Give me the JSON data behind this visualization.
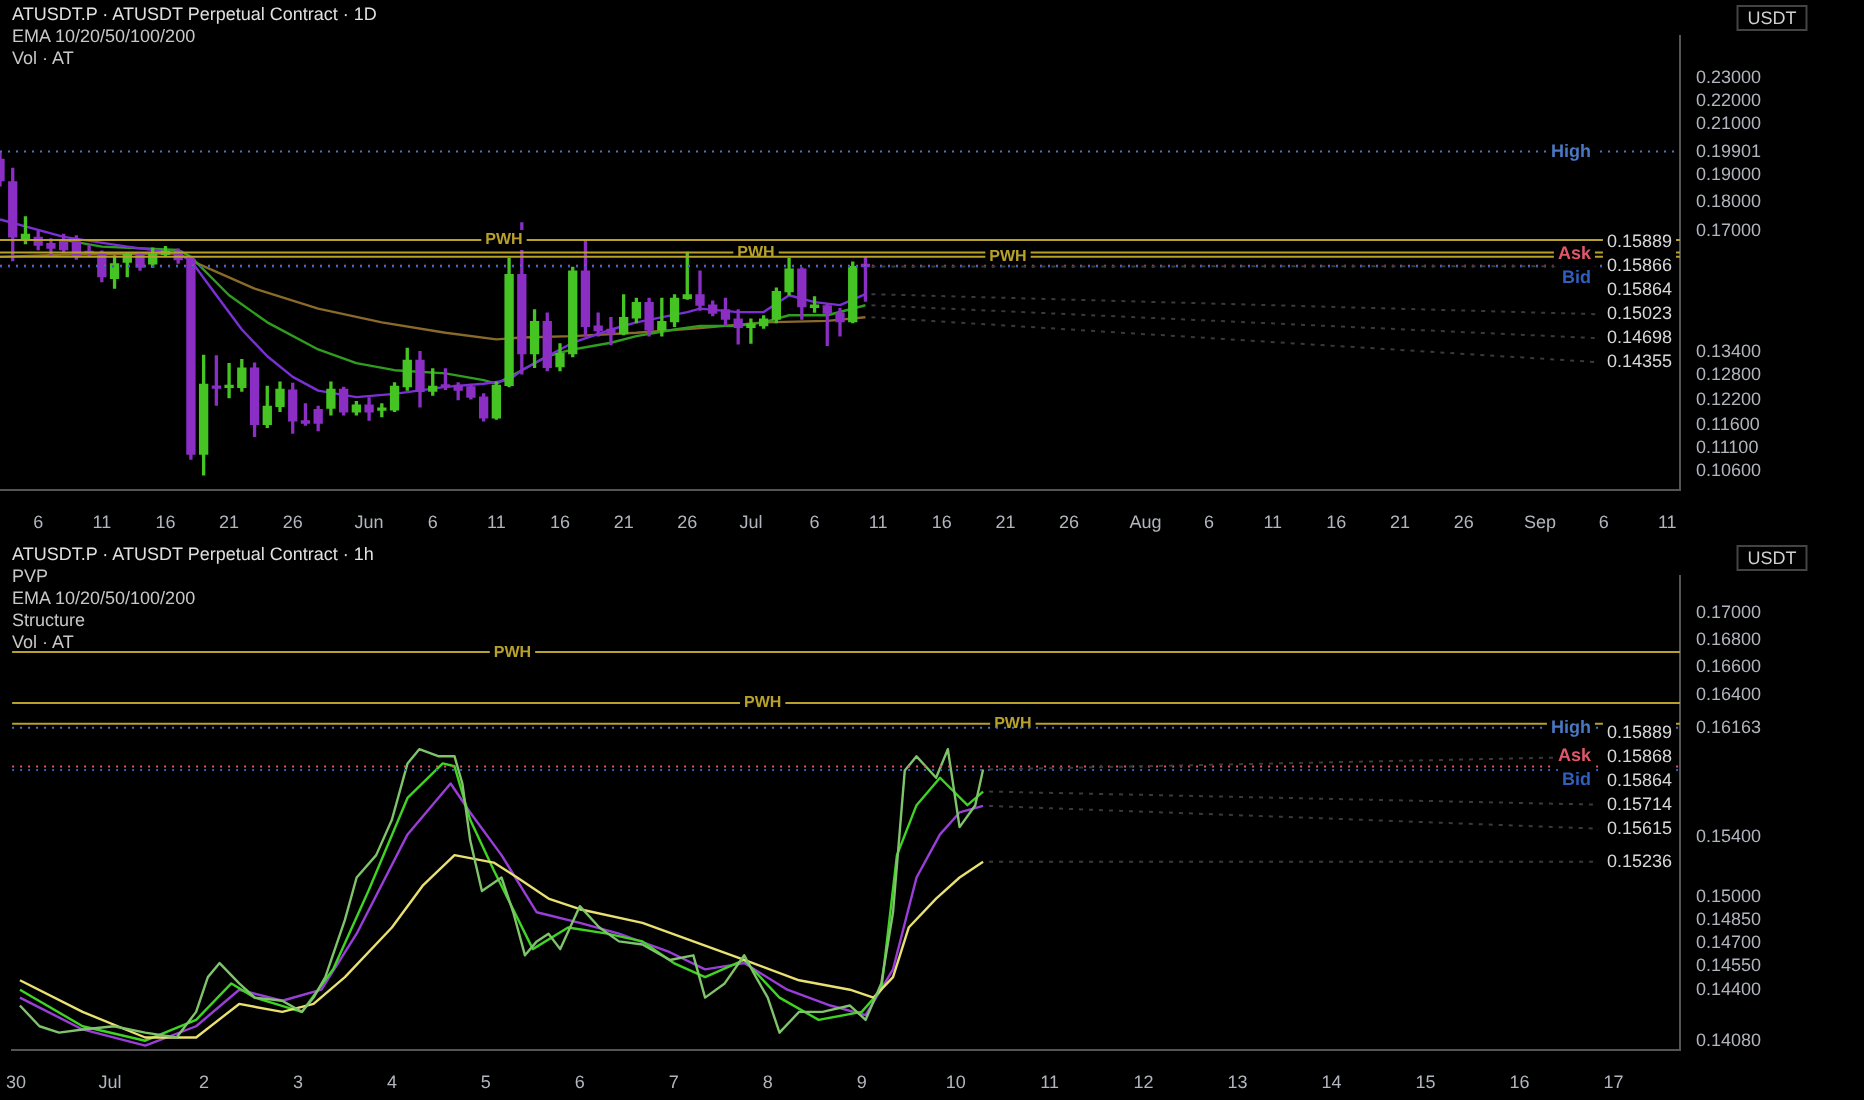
{
  "chart_data": [
    {
      "type": "candlestick",
      "title": "ATUSDT.P · ATUSDT Perpetual Contract · 1D",
      "annotations": [
        "EMA 10/20/50/100/200",
        "Vol · AT",
        {
          "text": "0.15889",
          "y": 0.15889
        },
        {
          "text": "0.15866",
          "x": "--07-10",
          "y": 0.15866
        },
        {
          "text": "0.15864",
          "y": 0.15864
        },
        {
          "text": "0.15023",
          "x": "--07-10",
          "y": 0.15023
        },
        {
          "text": "0.14698",
          "x": "--07-10",
          "y": 0.14698
        },
        {
          "text": "0.14355",
          "x": "--07-10",
          "y": 0.14355
        }
      ],
      "ylabel": "USDT",
      "log": true,
      "legend": false,
      "grid": false,
      "x": [
        "--05-03",
        "--05-04",
        "--05-05",
        "--05-06",
        "--05-07",
        "--05-08",
        "--05-09",
        "--05-10",
        "--05-11",
        "--05-12",
        "--05-13",
        "--05-14",
        "--05-15",
        "--05-16",
        "--05-17",
        "--05-18",
        "--05-19",
        "--05-20",
        "--05-21",
        "--05-22",
        "--05-23",
        "--05-24",
        "--05-25",
        "--05-26",
        "--05-27",
        "--05-28",
        "--05-29",
        "--05-30",
        "--05-31",
        "--06-01",
        "--06-02",
        "--06-03",
        "--06-04",
        "--06-05",
        "--06-06",
        "--06-07",
        "--06-08",
        "--06-09",
        "--06-10",
        "--06-11",
        "--06-12",
        "--06-13",
        "--06-14",
        "--06-15",
        "--06-16",
        "--06-17",
        "--06-18",
        "--06-19",
        "--06-20",
        "--06-21",
        "--06-22",
        "--06-23",
        "--06-24",
        "--06-25",
        "--06-26",
        "--06-27",
        "--06-28",
        "--06-29",
        "--06-30",
        "--07-01",
        "--07-02",
        "--07-03",
        "--07-04",
        "--07-05",
        "--07-06",
        "--07-07",
        "--07-08",
        "--07-09",
        "--07-10"
      ],
      "ohlc": [
        [
          0.196,
          0.199,
          0.186,
          0.188
        ],
        [
          0.1875,
          0.1925,
          0.1605,
          0.1682
        ],
        [
          0.1675,
          0.175,
          0.166,
          0.169
        ],
        [
          0.168,
          0.17,
          0.164,
          0.1655
        ],
        [
          0.166,
          0.1675,
          0.162,
          0.1645
        ],
        [
          0.167,
          0.169,
          0.163,
          0.164
        ],
        [
          0.1665,
          0.1685,
          0.161,
          0.162
        ],
        [
          0.163,
          0.1655,
          0.1618,
          0.1628
        ],
        [
          0.163,
          0.1635,
          0.154,
          0.1555
        ],
        [
          0.155,
          0.162,
          0.152,
          0.1595
        ],
        [
          0.16,
          0.163,
          0.1555,
          0.1625
        ],
        [
          0.1625,
          0.163,
          0.1575,
          0.1585
        ],
        [
          0.1595,
          0.1645,
          0.1585,
          0.1625
        ],
        [
          0.1625,
          0.165,
          0.162,
          0.1635
        ],
        [
          0.1635,
          0.1642,
          0.1597,
          0.1608
        ],
        [
          0.161,
          0.1617,
          0.1085,
          0.1096
        ],
        [
          0.1096,
          0.1331,
          0.1052,
          0.1257
        ],
        [
          0.125,
          0.133,
          0.1207,
          0.1248
        ],
        [
          0.125,
          0.131,
          0.1225,
          0.1252
        ],
        [
          0.125,
          0.132,
          0.1241,
          0.1298
        ],
        [
          0.1298,
          0.1311,
          0.1135,
          0.1162
        ],
        [
          0.1162,
          0.1252,
          0.1155,
          0.1204
        ],
        [
          0.1204,
          0.1263,
          0.1192,
          0.1245
        ],
        [
          0.1243,
          0.126,
          0.1142,
          0.117
        ],
        [
          0.1168,
          0.121,
          0.116,
          0.1165
        ],
        [
          0.1196,
          0.1204,
          0.1148,
          0.1165
        ],
        [
          0.12,
          0.1263,
          0.1184,
          0.1245
        ],
        [
          0.1245,
          0.125,
          0.1184,
          0.1191
        ],
        [
          0.1191,
          0.1215,
          0.1184,
          0.1207
        ],
        [
          0.1207,
          0.1224,
          0.1172,
          0.1191
        ],
        [
          0.1195,
          0.121,
          0.118,
          0.1196
        ],
        [
          0.1196,
          0.1261,
          0.1192,
          0.1252
        ],
        [
          0.1252,
          0.135,
          0.1243,
          0.1318
        ],
        [
          0.1318,
          0.1341,
          0.1203,
          0.124
        ],
        [
          0.1241,
          0.1296,
          0.1231,
          0.1252
        ],
        [
          0.1253,
          0.1296,
          0.1245,
          0.1251
        ],
        [
          0.1255,
          0.1261,
          0.122,
          0.1243
        ],
        [
          0.1251,
          0.1257,
          0.1222,
          0.1226
        ],
        [
          0.1226,
          0.1234,
          0.117,
          0.1177
        ],
        [
          0.1177,
          0.1263,
          0.1174,
          0.1255
        ],
        [
          0.1255,
          0.1612,
          0.1252,
          0.1561
        ],
        [
          0.1561,
          0.1729,
          0.1284,
          0.1336
        ],
        [
          0.1336,
          0.1456,
          0.13,
          0.1423
        ],
        [
          0.1423,
          0.1447,
          0.1292,
          0.13
        ],
        [
          0.1302,
          0.1362,
          0.1292,
          0.1336
        ],
        [
          0.1336,
          0.1584,
          0.1328,
          0.1572
        ],
        [
          0.1572,
          0.1672,
          0.1384,
          0.141
        ],
        [
          0.141,
          0.1447,
          0.1384,
          0.1398
        ],
        [
          0.1401,
          0.1434,
          0.136,
          0.139
        ],
        [
          0.139,
          0.15,
          0.1387,
          0.1434
        ],
        [
          0.1434,
          0.149,
          0.142,
          0.1477
        ],
        [
          0.1477,
          0.149,
          0.1384,
          0.14
        ],
        [
          0.14,
          0.149,
          0.1384,
          0.1423
        ],
        [
          0.1423,
          0.15,
          0.141,
          0.149
        ],
        [
          0.149,
          0.1631,
          0.1488,
          0.15
        ],
        [
          0.15,
          0.1572,
          0.1456,
          0.147
        ],
        [
          0.147,
          0.1482,
          0.144,
          0.1447
        ],
        [
          0.1456,
          0.149,
          0.1413,
          0.143
        ],
        [
          0.143,
          0.1456,
          0.1362,
          0.1407
        ],
        [
          0.1407,
          0.143,
          0.1364,
          0.1416
        ],
        [
          0.1412,
          0.1439,
          0.1405,
          0.143
        ],
        [
          0.143,
          0.152,
          0.142,
          0.151
        ],
        [
          0.151,
          0.1612,
          0.15,
          0.1578
        ],
        [
          0.1578,
          0.1582,
          0.143,
          0.1466
        ],
        [
          0.1464,
          0.1494,
          0.145,
          0.1468
        ],
        [
          0.1468,
          0.1474,
          0.1358,
          0.1447
        ],
        [
          0.1447,
          0.146,
          0.1384,
          0.1423
        ],
        [
          0.1423,
          0.16,
          0.142,
          0.1586
        ],
        [
          0.1588,
          0.1617,
          0.1482,
          0.15866
        ]
      ],
      "colors": [
        "#8a2ec4",
        "#8a2ec4",
        "#45c424",
        "#8a2ec4",
        "#8a2ec4",
        "#8a2ec4",
        "#8a2ec4",
        "#8a2ec4",
        "#8a2ec4",
        "#45c424",
        "#45c424",
        "#8a2ec4",
        "#45c424",
        "#45c424",
        "#8a2ec4",
        "#8a2ec4",
        "#45c424",
        "#8a2ec4",
        "#45c424",
        "#45c424",
        "#8a2ec4",
        "#45c424",
        "#45c424",
        "#8a2ec4",
        "#8a2ec4",
        "#8a2ec4",
        "#45c424",
        "#8a2ec4",
        "#45c424",
        "#8a2ec4",
        "#45c424",
        "#45c424",
        "#45c424",
        "#8a2ec4",
        "#45c424",
        "#8a2ec4",
        "#8a2ec4",
        "#8a2ec4",
        "#8a2ec4",
        "#45c424",
        "#45c424",
        "#8a2ec4",
        "#45c424",
        "#8a2ec4",
        "#45c424",
        "#45c424",
        "#8a2ec4",
        "#8a2ec4",
        "#8a2ec4",
        "#45c424",
        "#45c424",
        "#8a2ec4",
        "#45c424",
        "#45c424",
        "#45c424",
        "#8a2ec4",
        "#8a2ec4",
        "#8a2ec4",
        "#8a2ec4",
        "#45c424",
        "#45c424",
        "#45c424",
        "#45c424",
        "#8a2ec4",
        "#45c424",
        "#8a2ec4",
        "#8a2ec4",
        "#45c424",
        "#8a2ec4"
      ],
      "series": [
        {
          "type": "line",
          "color": "#7b2fd6",
          "x": [
            "--05-03",
            "--05-08",
            "--05-13",
            "--05-17",
            "--05-18",
            "--05-20",
            "--05-22",
            "--05-24",
            "--05-26",
            "--05-28",
            "--05-31",
            "--06-03",
            "--06-07",
            "--06-10",
            "--06-12",
            "--06-13",
            "--06-15",
            "--06-17",
            "--06-20",
            "--06-22",
            "--06-26",
            "--06-27",
            "--06-30",
            "--07-02",
            "--07-04",
            "--07-06",
            "--07-08",
            "--07-10"
          ],
          "values": [
            0.1741,
            0.1682,
            0.165,
            0.1628,
            0.1605,
            0.1499,
            0.1401,
            0.1329,
            0.1276,
            0.1242,
            0.1226,
            0.1234,
            0.1251,
            0.1259,
            0.1268,
            0.1293,
            0.1329,
            0.1365,
            0.1401,
            0.1421,
            0.145,
            0.146,
            0.145,
            0.145,
            0.1499,
            0.1479,
            0.147,
            0.15023
          ]
        },
        {
          "type": "line",
          "color": "#2f9e1e",
          "x": [
            "--05-08",
            "--05-11",
            "--05-17",
            "--05-18",
            "--05-21",
            "--05-24",
            "--05-28",
            "--05-31",
            "--06-03",
            "--06-07",
            "--06-10",
            "--06-11",
            "--06-13",
            "--06-15",
            "--06-17",
            "--06-20",
            "--06-22",
            "--06-25",
            "--06-27",
            "--06-30",
            "--07-02",
            "--07-04",
            "--07-07",
            "--07-10"
          ],
          "values": [
            0.1672,
            0.165,
            0.1639,
            0.1617,
            0.1499,
            0.1421,
            0.1347,
            0.1311,
            0.1293,
            0.1285,
            0.1268,
            0.1259,
            0.1293,
            0.1329,
            0.1347,
            0.1365,
            0.1383,
            0.1401,
            0.1411,
            0.1411,
            0.1421,
            0.1441,
            0.1441,
            0.14698
          ]
        },
        {
          "type": "line",
          "color": "#8a6a2a",
          "x": [
            "--05-03",
            "--05-08",
            "--05-17",
            "--05-18",
            "--05-23",
            "--05-28",
            "--06-02",
            "--06-07",
            "--06-11",
            "--06-13",
            "--06-17",
            "--06-22",
            "--06-27",
            "--07-02",
            "--07-07",
            "--07-10"
          ],
          "values": [
            0.1617,
            0.1624,
            0.1628,
            0.1605,
            0.1519,
            0.146,
            0.1421,
            0.1392,
            0.1374,
            0.1379,
            0.1383,
            0.1392,
            0.1405,
            0.1421,
            0.1425,
            0.14355
          ]
        }
      ],
      "xlim": [
        "--05-03",
        "--09-12"
      ],
      "xticks": [
        {
          "value": "--05-06",
          "label": "6"
        },
        {
          "value": "--05-11",
          "label": "11"
        },
        {
          "value": "--05-16",
          "label": "16"
        },
        {
          "value": "--05-21",
          "label": "21"
        },
        {
          "value": "--05-26",
          "label": "26"
        },
        {
          "value": "--06-01",
          "label": "Jun"
        },
        {
          "value": "--06-06",
          "label": "6"
        },
        {
          "value": "--06-11",
          "label": "11"
        },
        {
          "value": "--06-16",
          "label": "16"
        },
        {
          "value": "--06-21",
          "label": "21"
        },
        {
          "value": "--06-26",
          "label": "26"
        },
        {
          "value": "--07-01",
          "label": "Jul"
        },
        {
          "value": "--07-06",
          "label": "6"
        },
        {
          "value": "--07-11",
          "label": "11"
        },
        {
          "value": "--07-16",
          "label": "16"
        },
        {
          "value": "--07-21",
          "label": "21"
        },
        {
          "value": "--07-26",
          "label": "26"
        },
        {
          "value": "--08-01",
          "label": "Aug"
        },
        {
          "value": "--08-06",
          "label": "6"
        },
        {
          "value": "--08-11",
          "label": "11"
        },
        {
          "value": "--08-16",
          "label": "16"
        },
        {
          "value": "--08-21",
          "label": "21"
        },
        {
          "value": "--08-26",
          "label": "26"
        },
        {
          "value": "--09-01",
          "label": "Sep"
        },
        {
          "value": "--09-06",
          "label": "6"
        },
        {
          "value": "--09-11",
          "label": "11"
        }
      ],
      "ylim": [
        0.102,
        0.25
      ],
      "yticks": [
        {
          "value": 0.106,
          "label": "0.10600"
        },
        {
          "value": 0.111,
          "label": "0.11100"
        },
        {
          "value": 0.116,
          "label": "0.11600"
        },
        {
          "value": 0.122,
          "label": "0.12200"
        },
        {
          "value": 0.128,
          "label": "0.12800"
        },
        {
          "value": 0.134,
          "label": "0.13400"
        },
        {
          "value": 0.17,
          "label": "0.17000"
        },
        {
          "value": 0.18,
          "label": "0.18000"
        },
        {
          "value": 0.19,
          "label": "0.19000"
        },
        {
          "value": 0.19901,
          "label": "0.19901"
        },
        {
          "value": 0.21,
          "label": "0.21000"
        },
        {
          "value": 0.22,
          "label": "0.22000"
        },
        {
          "value": 0.23,
          "label": "0.23000"
        }
      ],
      "ref_lines": [
        {
          "axis": "y",
          "value": 0.1672,
          "label": "PWH",
          "color": "#b8a12a",
          "line_style": "solid"
        },
        {
          "axis": "y",
          "value": 0.1631,
          "label": "PWH",
          "color": "#b8a12a",
          "line_style": "solid"
        },
        {
          "axis": "y",
          "value": 0.1617,
          "label": "PWH",
          "color": "#b8a12a",
          "line_style": "solid"
        },
        {
          "axis": "y",
          "value": 0.19901,
          "label": "High",
          "color": "#4a78c0",
          "line_style": "dotted"
        },
        {
          "axis": "y",
          "value": 0.15889,
          "label": "Ask",
          "color": "#e0566b",
          "line_style": "dotted"
        },
        {
          "axis": "y",
          "value": 0.15864,
          "label": "Bid",
          "color": "#2f5fc0",
          "line_style": "dotted"
        }
      ]
    },
    {
      "type": "line",
      "title": "ATUSDT.P · ATUSDT Perpetual Contract · 1h",
      "annotations": [
        "PVP",
        "EMA 10/20/50/100/200",
        "Structure",
        "Vol · AT",
        {
          "text": "0.15889",
          "y": 0.15889
        },
        {
          "text": "0.15868",
          "x": "--07-10T07:00",
          "y": 0.15868
        },
        {
          "text": "0.15864",
          "y": 0.15864
        },
        {
          "text": "0.15714",
          "x": "--07-10T07:00",
          "y": 0.15714
        },
        {
          "text": "0.15615",
          "x": "--07-10T07:00",
          "y": 0.15615
        },
        {
          "text": "0.15236",
          "x": "--07-10T07:00",
          "y": 0.15236
        }
      ],
      "ylabel": "USDT",
      "log": true,
      "legend": false,
      "grid": false,
      "series": [
        {
          "color": "#7fc46a",
          "x": [
            "--06-30T01:00",
            "--06-30T06:00",
            "--06-30T11:00",
            "--06-30T17:00",
            "--07-01T01:00",
            "--07-01T09:00",
            "--07-01T17:00",
            "--07-01T22:00",
            "--07-02T01:00",
            "--07-02T04:00",
            "--07-02T09:00",
            "--07-02T13:00",
            "--07-02T20:00",
            "--07-03T01:00",
            "--07-03T04:00",
            "--07-03T07:00",
            "--07-03T12:00",
            "--07-03T15:00",
            "--07-03T20:00",
            "--07-04T00:00",
            "--07-04T04:00",
            "--07-04T07:00",
            "--07-04T12:00",
            "--07-04T16:00",
            "--07-04T18:00",
            "--07-04T20:00",
            "--07-04T23:00",
            "--07-05T04:00",
            "--07-05T07:00",
            "--07-05T10:00",
            "--07-05T13:00",
            "--07-05T16:00",
            "--07-05T19:00",
            "--07-06T00:00",
            "--07-06T05:00",
            "--07-06T10:00",
            "--07-06T16:00",
            "--07-06T23:00",
            "--07-07T05:00",
            "--07-07T08:00",
            "--07-07T13:00",
            "--07-07T18:00",
            "--07-07T21:00",
            "--07-08T00:00",
            "--07-08T03:00",
            "--07-08T08:00",
            "--07-08T14:00",
            "--07-08T21:00",
            "--07-09T01:00",
            "--07-09T05:00",
            "--07-09T08:00",
            "--07-09T11:00",
            "--07-09T14:00",
            "--07-09T19:00",
            "--07-09T22:00",
            "--07-10T01:00",
            "--07-10T05:00",
            "--07-10T07:00"
          ],
          "values": [
            0.143,
            0.1417,
            0.1413,
            0.1415,
            0.1417,
            0.1413,
            0.141,
            0.1426,
            0.1448,
            0.1457,
            0.1444,
            0.1435,
            0.1433,
            0.1426,
            0.1435,
            0.1448,
            0.1485,
            0.1513,
            0.1528,
            0.1552,
            0.1591,
            0.1601,
            0.1596,
            0.1596,
            0.1577,
            0.1538,
            0.1504,
            0.1513,
            0.149,
            0.1462,
            0.1471,
            0.1476,
            0.1466,
            0.1494,
            0.148,
            0.1471,
            0.1469,
            0.1459,
            0.1462,
            0.1435,
            0.1444,
            0.1462,
            0.1448,
            0.1435,
            0.1413,
            0.1426,
            0.1426,
            0.143,
            0.1421,
            0.1444,
            0.149,
            0.1586,
            0.1596,
            0.1581,
            0.1601,
            0.1547,
            0.1562,
            0.15868
          ]
        },
        {
          "color": "#e8e070",
          "x": [
            "--06-30T01:00",
            "--06-30T17:00",
            "--07-01T09:00",
            "--07-01T22:00",
            "--07-02T09:00",
            "--07-02T20:00",
            "--07-03T04:00",
            "--07-03T12:00",
            "--07-04T00:00",
            "--07-04T08:00",
            "--07-04T16:00",
            "--07-05T02:00",
            "--07-05T08:00",
            "--07-05T16:00",
            "--07-06T00:00",
            "--07-06T16:00",
            "--07-07T05:00",
            "--07-07T18:00",
            "--07-08T08:00",
            "--07-08T21:00",
            "--07-09T03:00",
            "--07-09T08:00",
            "--07-09T12:00",
            "--07-09T19:00",
            "--07-10T01:00",
            "--07-10T07:00"
          ],
          "values": [
            0.1446,
            0.1426,
            0.141,
            0.141,
            0.1431,
            0.1426,
            0.1431,
            0.1448,
            0.148,
            0.1508,
            0.1528,
            0.1523,
            0.1513,
            0.1499,
            0.1492,
            0.1483,
            0.1471,
            0.1459,
            0.1446,
            0.144,
            0.1435,
            0.1448,
            0.148,
            0.1499,
            0.1513,
            0.15236
          ]
        },
        {
          "color": "#3fd424",
          "x": [
            "--06-30T01:00",
            "--06-30T17:00",
            "--07-01T09:00",
            "--07-01T22:00",
            "--07-02T07:00",
            "--07-02T13:00",
            "--07-03T01:00",
            "--07-03T09:00",
            "--07-03T18:00",
            "--07-04T04:00",
            "--07-04T13:00",
            "--07-04T16:00",
            "--07-04T20:00",
            "--07-05T02:00",
            "--07-05T12:00",
            "--07-05T21:00",
            "--07-06T07:00",
            "--07-06T16:00",
            "--07-07T00:00",
            "--07-07T08:00",
            "--07-07T18:00",
            "--07-08T03:00",
            "--07-08T13:00",
            "--07-09T00:00",
            "--07-09T05:00",
            "--07-09T09:00",
            "--07-09T14:00",
            "--07-09T20:00",
            "--07-10T03:00",
            "--07-10T07:00"
          ],
          "values": [
            0.144,
            0.1417,
            0.1408,
            0.1421,
            0.1444,
            0.1435,
            0.1426,
            0.1453,
            0.1504,
            0.1567,
            0.1591,
            0.1589,
            0.1552,
            0.1518,
            0.1466,
            0.148,
            0.1476,
            0.1471,
            0.1457,
            0.1448,
            0.1459,
            0.1435,
            0.1421,
            0.1426,
            0.144,
            0.1528,
            0.1562,
            0.1581,
            0.1562,
            0.15714
          ]
        },
        {
          "color": "#9a3ed8",
          "x": [
            "--06-30T01:00",
            "--06-30T17:00",
            "--07-01T09:00",
            "--07-01T22:00",
            "--07-02T09:00",
            "--07-02T20:00",
            "--07-03T06:00",
            "--07-03T15:00",
            "--07-04T04:00",
            "--07-04T15:00",
            "--07-04T20:00",
            "--07-05T04:00",
            "--07-05T13:00",
            "--07-06T00:00",
            "--07-06T10:00",
            "--07-06T23:00",
            "--07-07T08:00",
            "--07-07T18:00",
            "--07-08T05:00",
            "--07-08T16:00",
            "--07-09T01:00",
            "--07-09T08:00",
            "--07-09T14:00",
            "--07-09T20:00",
            "--07-10T01:00",
            "--07-10T07:00"
          ],
          "values": [
            0.1435,
            0.1415,
            0.1405,
            0.1417,
            0.144,
            0.1433,
            0.144,
            0.1476,
            0.1542,
            0.1577,
            0.1557,
            0.1528,
            0.149,
            0.1483,
            0.1476,
            0.1464,
            0.1453,
            0.1457,
            0.144,
            0.143,
            0.1424,
            0.1453,
            0.1513,
            0.1542,
            0.1557,
            0.15615
          ]
        }
      ],
      "xlim": [
        "--06-29T23:00",
        "--07-17T17:00"
      ],
      "xticks": [
        {
          "value": "--06-30",
          "label": "30"
        },
        {
          "value": "--07-01",
          "label": "Jul"
        },
        {
          "value": "--07-02",
          "label": "2"
        },
        {
          "value": "--07-03",
          "label": "3"
        },
        {
          "value": "--07-04",
          "label": "4"
        },
        {
          "value": "--07-05",
          "label": "5"
        },
        {
          "value": "--07-06",
          "label": "6"
        },
        {
          "value": "--07-07",
          "label": "7"
        },
        {
          "value": "--07-08",
          "label": "8"
        },
        {
          "value": "--07-09",
          "label": "9"
        },
        {
          "value": "--07-10",
          "label": "10"
        },
        {
          "value": "--07-11",
          "label": "11"
        },
        {
          "value": "--07-12",
          "label": "12"
        },
        {
          "value": "--07-13",
          "label": "13"
        },
        {
          "value": "--07-14",
          "label": "14"
        },
        {
          "value": "--07-15",
          "label": "15"
        },
        {
          "value": "--07-16",
          "label": "16"
        },
        {
          "value": "--07-17",
          "label": "17"
        }
      ],
      "ylim": [
        0.1402,
        0.1728
      ],
      "yticks": [
        {
          "value": 0.1408,
          "label": "0.14080"
        },
        {
          "value": 0.144,
          "label": "0.14400"
        },
        {
          "value": 0.1455,
          "label": "0.14550"
        },
        {
          "value": 0.147,
          "label": "0.14700"
        },
        {
          "value": 0.1485,
          "label": "0.14850"
        },
        {
          "value": 0.15,
          "label": "0.15000"
        },
        {
          "value": 0.154,
          "label": "0.15400"
        },
        {
          "value": 0.16163,
          "label": "0.16163"
        },
        {
          "value": 0.164,
          "label": "0.16400"
        },
        {
          "value": 0.166,
          "label": "0.16600"
        },
        {
          "value": 0.168,
          "label": "0.16800"
        },
        {
          "value": 0.17,
          "label": "0.17000"
        }
      ],
      "ref_lines": [
        {
          "axis": "y",
          "value": 0.1671,
          "label": "PWH",
          "color": "#b8a12a",
          "line_style": "solid"
        },
        {
          "axis": "y",
          "value": 0.1634,
          "label": "PWH",
          "color": "#b8a12a",
          "line_style": "solid"
        },
        {
          "axis": "y",
          "value": 0.1619,
          "label": "PWH",
          "color": "#b8a12a",
          "line_style": "solid"
        },
        {
          "axis": "y",
          "value": 0.16163,
          "label": "High",
          "color": "#4a78c0",
          "line_style": "dotted"
        },
        {
          "axis": "y",
          "value": 0.15889,
          "label": "Ask",
          "color": "#e0566b",
          "line_style": "dotted"
        },
        {
          "axis": "y",
          "value": 0.15864,
          "label": "Bid",
          "color": "#2f5fc0",
          "line_style": "dotted"
        }
      ]
    }
  ]
}
